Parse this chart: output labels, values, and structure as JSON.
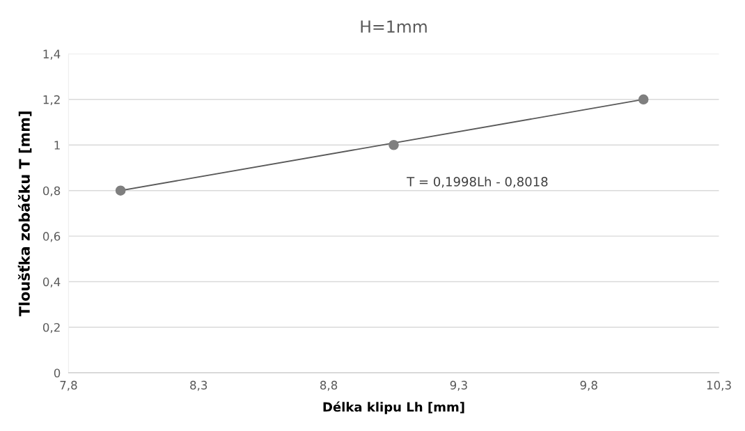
{
  "chart_data": {
    "type": "scatter",
    "title": "H=1mm",
    "xlabel": "Délka klipu Lh [mm]",
    "ylabel": "Tloušťka zobáčku T [mm]",
    "series": [
      {
        "color": "#7f7f7f",
        "x": [
          8.0,
          9.05,
          10.01
        ],
        "values": [
          0.8,
          1.0,
          1.2
        ],
        "marker": "circle"
      },
      {
        "type": "line",
        "color": "#595959",
        "x": [
          8.0,
          10.01
        ],
        "values": [
          0.8,
          1.2
        ],
        "line_style": "solid"
      }
    ],
    "annotations": [
      "T = 0,1998Lh - 0,8018"
    ],
    "xlim": [
      7.8,
      10.3
    ],
    "xticks": [
      {
        "value": 7.8,
        "label": "7,8"
      },
      {
        "value": 8.3,
        "label": "8,3"
      },
      {
        "value": 8.8,
        "label": "8,8"
      },
      {
        "value": 9.3,
        "label": "9,3"
      },
      {
        "value": 9.8,
        "label": "9,8"
      },
      {
        "value": 10.3,
        "label": "10,3"
      }
    ],
    "ylim": [
      0,
      1.4
    ],
    "yticks": [
      0,
      {
        "value": 0.2,
        "label": "0,2"
      },
      {
        "value": 0.4,
        "label": "0,4"
      },
      {
        "value": 0.6,
        "label": "0,6"
      },
      {
        "value": 0.8,
        "label": "0,8"
      },
      1,
      {
        "value": 1.2,
        "label": "1,2"
      },
      {
        "value": 1.4,
        "label": "1,4"
      }
    ],
    "grid": "y",
    "legend": false
  }
}
